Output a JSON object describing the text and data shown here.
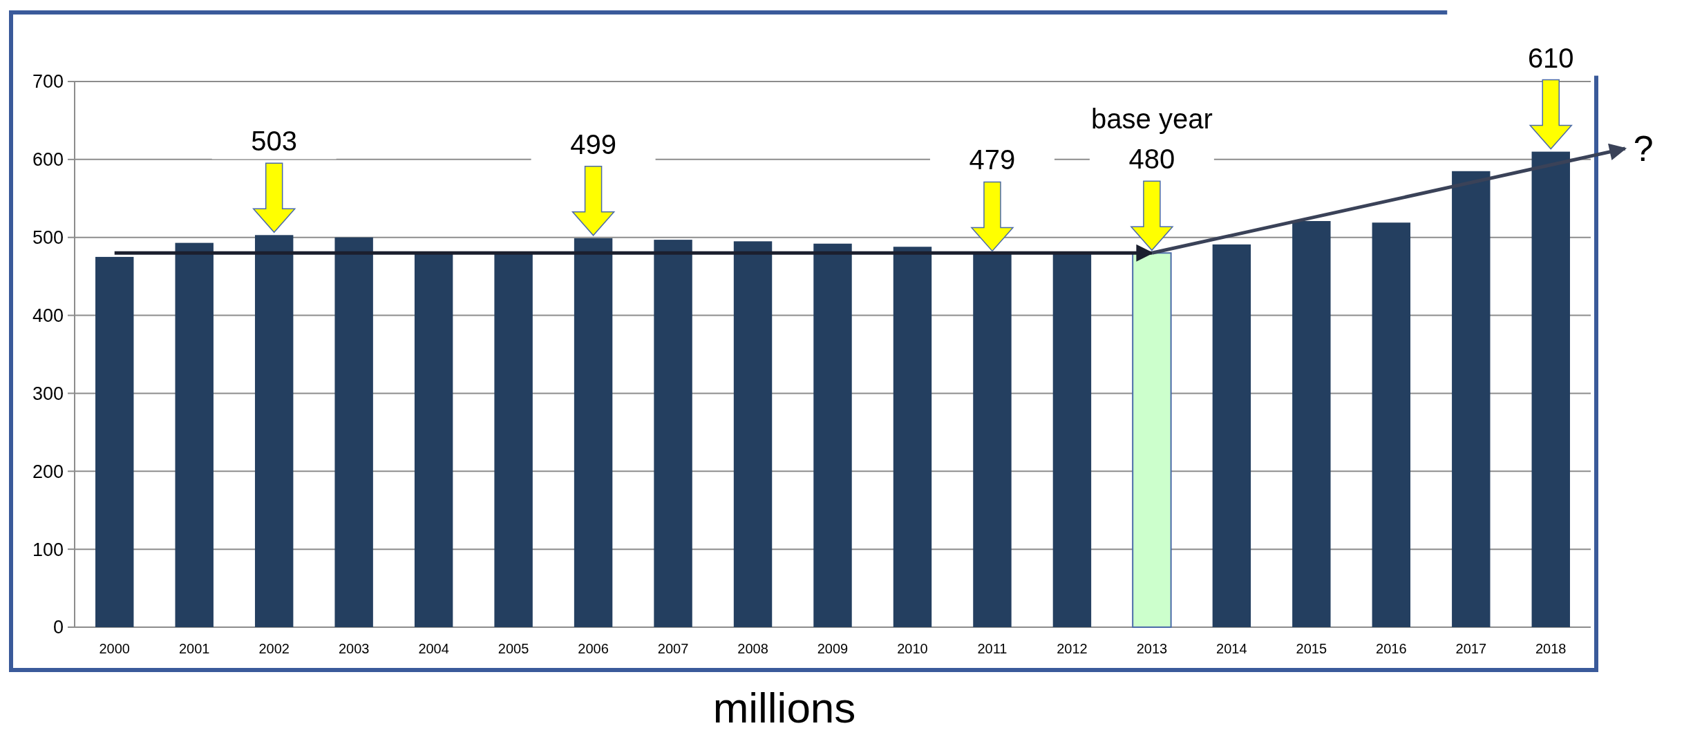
{
  "chart_data": {
    "type": "bar",
    "xlabel": "millions",
    "categories": [
      "2000",
      "2001",
      "2002",
      "2003",
      "2004",
      "2005",
      "2006",
      "2007",
      "2008",
      "2009",
      "2010",
      "2011",
      "2012",
      "2013",
      "2014",
      "2015",
      "2016",
      "2017",
      "2018"
    ],
    "series": [
      {
        "values": [
          475,
          493,
          503,
          500,
          482,
          482,
          499,
          497,
          495,
          492,
          488,
          479,
          481,
          480,
          491,
          521,
          519,
          585,
          610
        ],
        "colors": [
          "#243f60",
          "#243f60",
          "#243f60",
          "#243f60",
          "#243f60",
          "#243f60",
          "#243f60",
          "#243f60",
          "#243f60",
          "#243f60",
          "#243f60",
          "#243f60",
          "#243f60",
          "#ccffcc",
          "#243f60",
          "#243f60",
          "#243f60",
          "#243f60",
          "#243f60"
        ]
      },
      {
        "type": "line",
        "values": [
          480,
          480,
          480,
          480,
          480,
          480,
          480,
          480,
          480,
          480,
          480,
          480,
          480,
          480,
          null,
          null,
          null,
          null,
          null
        ],
        "color": "#1b1f2e"
      },
      {
        "type": "line",
        "values": [
          null,
          null,
          null,
          null,
          null,
          null,
          null,
          null,
          null,
          null,
          null,
          null,
          null,
          480,
          null,
          null,
          null,
          null,
          593
        ],
        "color": "#3a4258"
      }
    ],
    "ylim": [
      0,
      700
    ],
    "yticks": [
      0,
      100,
      200,
      300,
      400,
      500,
      600,
      700
    ],
    "grid": "y",
    "annotations": [
      {
        "text": "503",
        "x": "2002",
        "y": 503
      },
      {
        "text": "499",
        "x": "2006",
        "y": 499
      },
      {
        "text": "479",
        "x": "2011",
        "y": 479
      },
      {
        "text": "480",
        "x": "2013",
        "y": 480
      },
      "base year",
      {
        "text": "610",
        "x": "2018",
        "y": 610
      },
      {
        "text": "?",
        "x": "2018",
        "y": 593
      }
    ]
  }
}
